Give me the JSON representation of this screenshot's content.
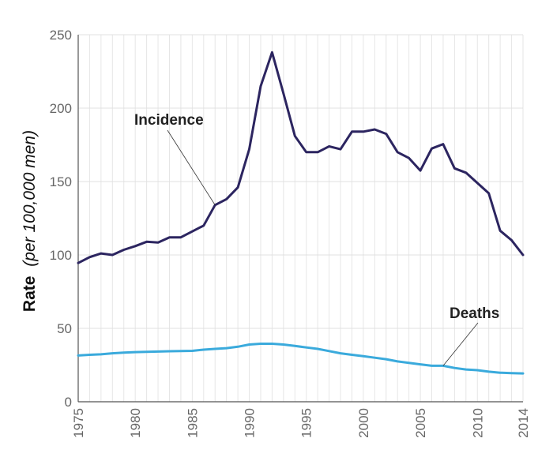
{
  "chart_data": {
    "type": "line",
    "title": "",
    "xlabel": "",
    "ylabel_main": "Rate",
    "ylabel_sub": "(per 100,000 men)",
    "xlim": [
      1975,
      2014
    ],
    "ylim": [
      0,
      250
    ],
    "grid": true,
    "x_ticks": [
      1975,
      1980,
      1985,
      1990,
      1995,
      2000,
      2005,
      2010,
      2014
    ],
    "y_ticks": [
      0,
      50,
      100,
      150,
      200,
      250
    ],
    "x": [
      1975,
      1976,
      1977,
      1978,
      1979,
      1980,
      1981,
      1982,
      1983,
      1984,
      1985,
      1986,
      1987,
      1988,
      1989,
      1990,
      1991,
      1992,
      1993,
      1994,
      1995,
      1996,
      1997,
      1998,
      1999,
      2000,
      2001,
      2002,
      2003,
      2004,
      2005,
      2006,
      2007,
      2008,
      2009,
      2010,
      2011,
      2012,
      2013,
      2014
    ],
    "series": [
      {
        "name": "Incidence",
        "color": "#2c2560",
        "values": [
          94.5,
          98.5,
          101,
          100,
          103.5,
          106,
          109,
          108.5,
          112,
          112,
          116,
          120,
          134,
          138,
          146,
          172,
          215,
          238,
          210,
          181,
          170,
          170,
          174,
          172,
          184,
          184,
          185.5,
          182.5,
          170,
          166,
          157.5,
          172.5,
          175.5,
          159,
          156,
          149,
          142,
          116.5,
          110,
          100
        ]
      },
      {
        "name": "Deaths",
        "color": "#3aaadc",
        "values": [
          31.5,
          32,
          32.3,
          33,
          33.5,
          33.8,
          34,
          34.2,
          34.4,
          34.5,
          34.7,
          35.5,
          36,
          36.5,
          37.5,
          39,
          39.5,
          39.5,
          39,
          38,
          37,
          36,
          34.5,
          33,
          32,
          31,
          30,
          29,
          27.5,
          26.5,
          25.5,
          24.5,
          24.5,
          23,
          22,
          21.5,
          20.5,
          19.8,
          19.5,
          19.3
        ]
      }
    ],
    "annotations": [
      {
        "text": "Incidence",
        "series": "Incidence",
        "point_year": 1987
      },
      {
        "text": "Deaths",
        "series": "Deaths",
        "point_year": 2007
      }
    ]
  }
}
